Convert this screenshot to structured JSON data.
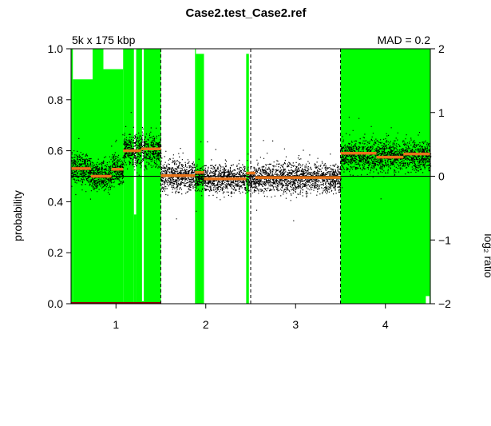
{
  "chart_data": {
    "type": "scatter",
    "title": "Case2.test_Case2.ref",
    "left_annotation": "5k x 175 kbp",
    "right_annotation": "MAD = 0.2",
    "ylabel_left": "probability",
    "ylabel_right": "log₂ ratio",
    "xlabel": "",
    "y_left_lim": [
      0,
      1
    ],
    "y_left_ticks": [
      "0.0",
      "0.2",
      "0.4",
      "0.6",
      "0.8",
      "1.0"
    ],
    "y_right_lim": [
      -2,
      2
    ],
    "y_right_ticks": [
      "−2",
      "−1",
      "0",
      "1",
      "2"
    ],
    "x_ticks": [
      "1",
      "2",
      "3",
      "4"
    ],
    "chromosome_boundaries": [
      1.5,
      2.5,
      3.5
    ],
    "zero_reference_log2": 0,
    "colors": {
      "probability": "#00ff00",
      "segment": "#e8731a",
      "points": "#000000",
      "baseline": "#8b0000"
    },
    "probability_blocks": [
      {
        "x0": 0.5,
        "x1": 0.52,
        "p": 1.0
      },
      {
        "x0": 0.52,
        "x1": 0.74,
        "p": 0.88
      },
      {
        "x0": 0.74,
        "x1": 0.86,
        "p": 1.0
      },
      {
        "x0": 0.86,
        "x1": 1.08,
        "p": 0.92
      },
      {
        "x0": 1.08,
        "x1": 1.2,
        "p": 1.0
      },
      {
        "x0": 1.2,
        "x1": 1.225,
        "p": 0.35
      },
      {
        "x0": 1.225,
        "x1": 1.29,
        "p": 1.0
      },
      {
        "x0": 1.29,
        "x1": 1.31,
        "p": 0.01
      },
      {
        "x0": 1.31,
        "x1": 1.5,
        "p": 1.0
      },
      {
        "x0": 1.88,
        "x1": 1.89,
        "p": 1.0
      },
      {
        "x0": 1.89,
        "x1": 1.98,
        "p": 0.98
      },
      {
        "x0": 2.45,
        "x1": 2.48,
        "p": 0.98
      },
      {
        "x0": 3.5,
        "x1": 4.5,
        "p": 1.0
      }
    ],
    "probability_gaps": [
      {
        "x0": 4.45,
        "x1": 4.49,
        "p": 0.03
      }
    ],
    "segments": [
      {
        "x0": 0.5,
        "x1": 0.72,
        "log2": 0.12
      },
      {
        "x0": 0.72,
        "x1": 0.95,
        "log2": 0.0
      },
      {
        "x0": 0.95,
        "x1": 1.08,
        "log2": 0.11
      },
      {
        "x0": 1.08,
        "x1": 1.28,
        "log2": 0.4
      },
      {
        "x0": 1.28,
        "x1": 1.5,
        "log2": 0.43
      },
      {
        "x0": 1.5,
        "x1": 1.88,
        "log2": 0.01
      },
      {
        "x0": 1.88,
        "x1": 1.98,
        "log2": 0.06
      },
      {
        "x0": 1.98,
        "x1": 2.45,
        "log2": -0.04
      },
      {
        "x0": 2.45,
        "x1": 2.55,
        "log2": 0.05
      },
      {
        "x0": 2.55,
        "x1": 3.5,
        "log2": -0.02
      },
      {
        "x0": 3.5,
        "x1": 3.9,
        "log2": 0.36
      },
      {
        "x0": 3.9,
        "x1": 4.2,
        "log2": 0.3
      },
      {
        "x0": 4.2,
        "x1": 4.5,
        "log2": 0.35
      }
    ],
    "point_density": [
      {
        "x0": 0.5,
        "x1": 0.72,
        "center": 0.12,
        "spread": 0.16,
        "count": 380
      },
      {
        "x0": 0.72,
        "x1": 0.95,
        "center": 0.0,
        "spread": 0.16,
        "count": 380
      },
      {
        "x0": 0.95,
        "x1": 1.08,
        "center": 0.11,
        "spread": 0.16,
        "count": 220
      },
      {
        "x0": 1.08,
        "x1": 1.5,
        "center": 0.42,
        "spread": 0.18,
        "count": 700
      },
      {
        "x0": 1.5,
        "x1": 1.88,
        "center": 0.01,
        "spread": 0.16,
        "count": 640
      },
      {
        "x0": 1.88,
        "x1": 2.55,
        "center": -0.03,
        "spread": 0.15,
        "count": 1100
      },
      {
        "x0": 2.55,
        "x1": 3.5,
        "center": -0.02,
        "spread": 0.16,
        "count": 1500
      },
      {
        "x0": 3.5,
        "x1": 4.5,
        "center": 0.33,
        "spread": 0.17,
        "count": 1600
      }
    ]
  }
}
